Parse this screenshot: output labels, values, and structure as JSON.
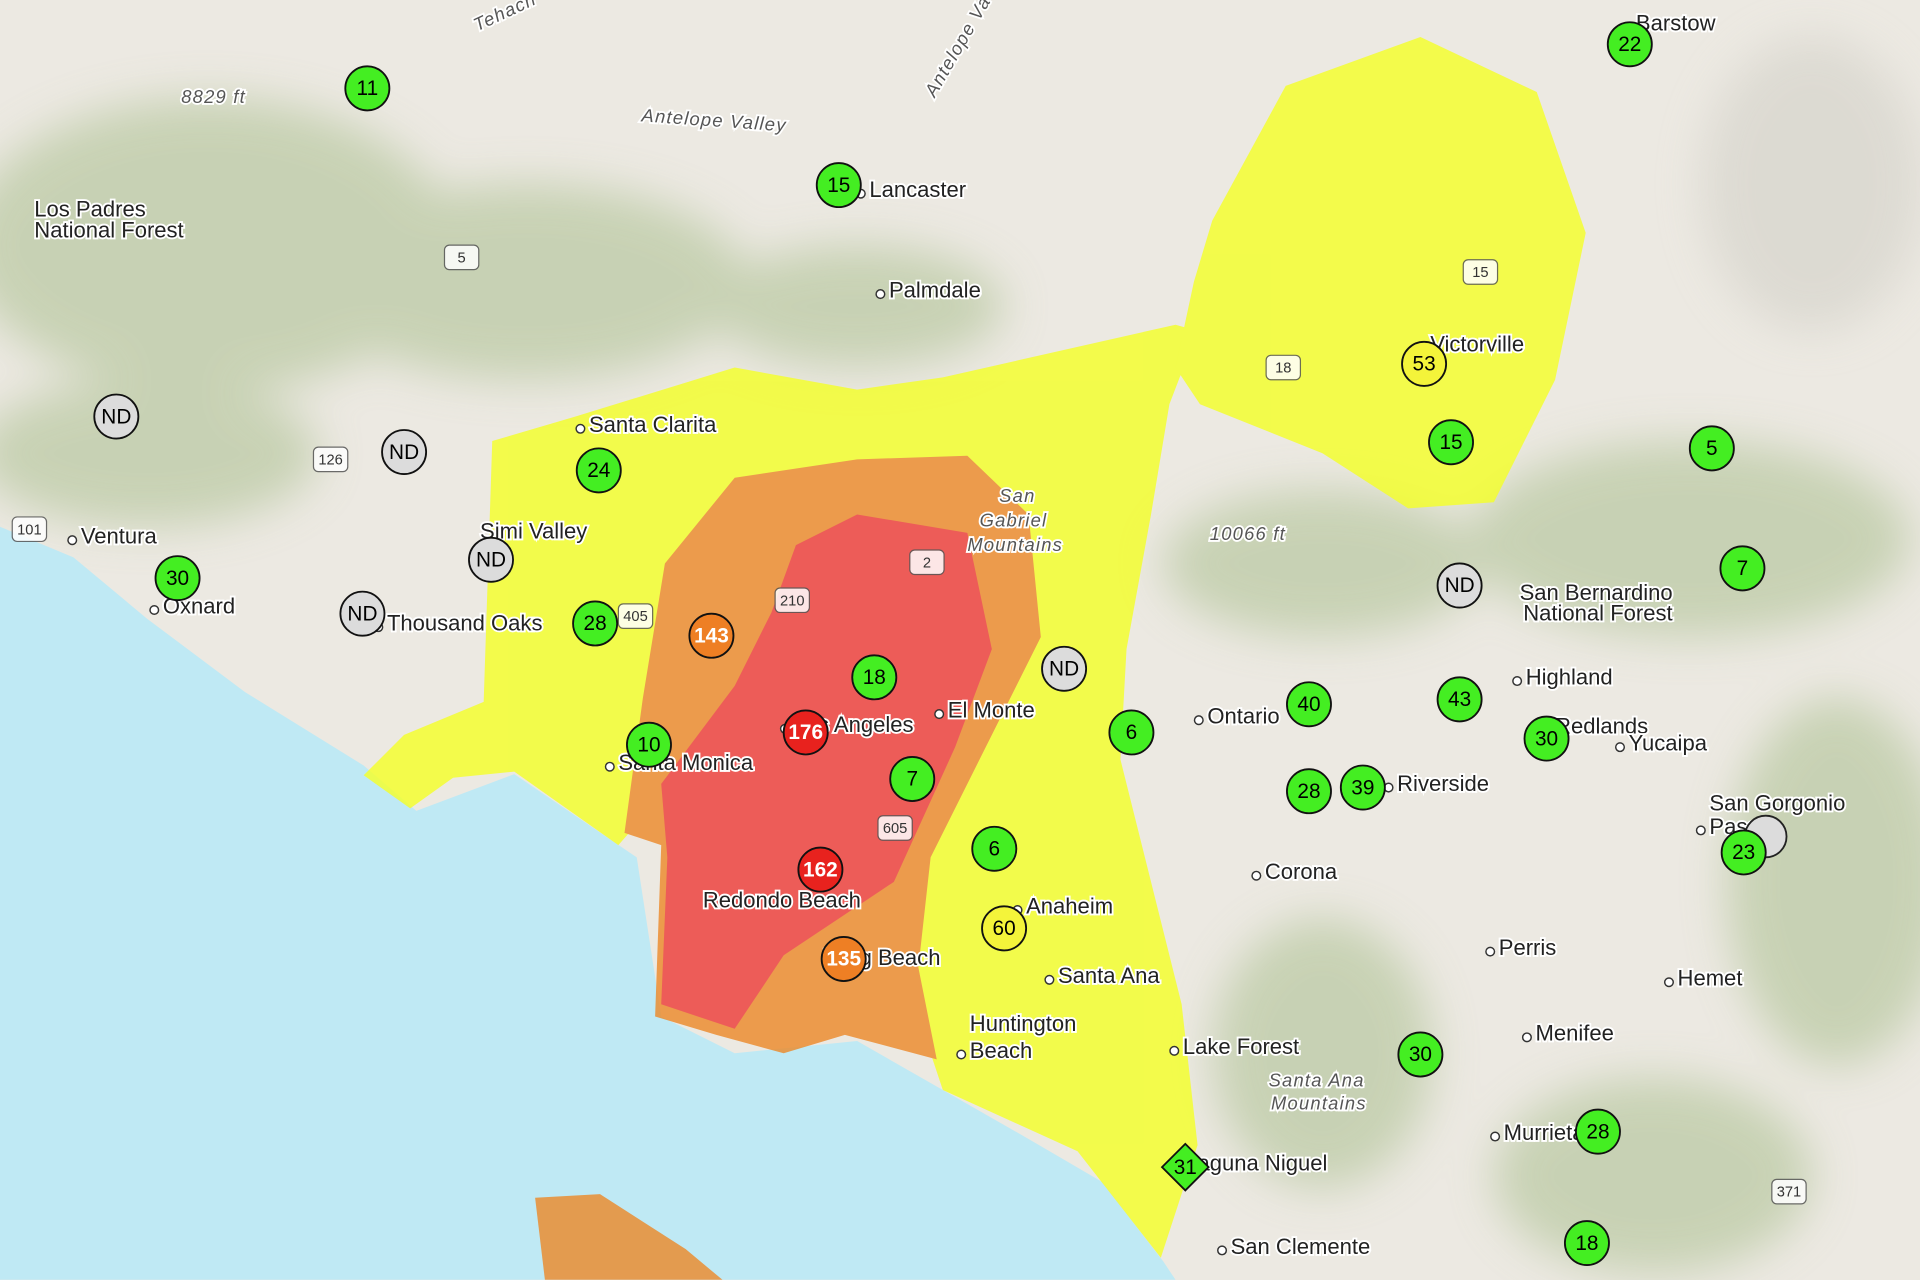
{
  "places": [
    {
      "name": "Lancaster"
    },
    {
      "name": "Palmdale"
    },
    {
      "name": "Santa Clarita"
    },
    {
      "name": "Simi Valley"
    },
    {
      "name": "Thousand Oaks"
    },
    {
      "name": "Ventura"
    },
    {
      "name": "Oxnard"
    },
    {
      "name": "Los Angeles"
    },
    {
      "name": "Santa Monica"
    },
    {
      "name": "El Monte"
    },
    {
      "name": "Redondo Beach"
    },
    {
      "name": "Long Beach"
    },
    {
      "name": "Anaheim"
    },
    {
      "name": "Santa Ana"
    },
    {
      "name": "Huntington"
    },
    {
      "name": "Beach"
    },
    {
      "name": "Lake Forest"
    },
    {
      "name": "Laguna Niguel"
    },
    {
      "name": "San Clemente"
    },
    {
      "name": "Ontario"
    },
    {
      "name": "Riverside"
    },
    {
      "name": "Corona"
    },
    {
      "name": "Perris"
    },
    {
      "name": "Hemet"
    },
    {
      "name": "Menifee"
    },
    {
      "name": "Murrieta"
    },
    {
      "name": "Highland"
    },
    {
      "name": "Redlands"
    },
    {
      "name": "Yucaipa"
    },
    {
      "name": "San Gorgonio"
    },
    {
      "name": "Pass"
    },
    {
      "name": "Victorville"
    },
    {
      "name": "Barstow"
    },
    {
      "name": "Los Padres"
    },
    {
      "name": "National Forest"
    },
    {
      "name": "San Bernardino"
    },
    {
      "name": "National Forest"
    },
    {
      "name": "Antelope Valley"
    },
    {
      "name": "San"
    },
    {
      "name": "Gabriel"
    },
    {
      "name": "Mountains"
    },
    {
      "name": "Santa Ana"
    },
    {
      "name": "Mountains"
    },
    {
      "name": "8829 ft"
    },
    {
      "name": "10066 ft"
    },
    {
      "name": "Antelope Va"
    },
    {
      "name": "Tehach"
    }
  ],
  "shields": [
    "5",
    "126",
    "101",
    "15",
    "18",
    "405",
    "210",
    "2",
    "605",
    "371"
  ],
  "stations": [
    {
      "reading": 11,
      "color": "#44ee22"
    },
    {
      "reading": 15,
      "color": "#44ee22"
    },
    {
      "reading": 22,
      "color": "#44ee22"
    },
    {
      "reading": 53,
      "color": "#f4f43a"
    },
    {
      "reading": 15,
      "color": "#44ee22"
    },
    {
      "reading": 5,
      "color": "#44ee22"
    },
    {
      "reading": "ND",
      "color": "#dcdcdc"
    },
    {
      "reading": "ND",
      "color": "#dcdcdc"
    },
    {
      "reading": 24,
      "color": "#44ee22"
    },
    {
      "reading": "ND",
      "color": "#dcdcdc"
    },
    {
      "reading": 30,
      "color": "#44ee22"
    },
    {
      "reading": "ND",
      "color": "#dcdcdc"
    },
    {
      "reading": 28,
      "color": "#44ee22"
    },
    {
      "reading": 143,
      "color": "#ee7f24"
    },
    {
      "reading": 18,
      "color": "#44ee22"
    },
    {
      "reading": "ND",
      "color": "#dcdcdc"
    },
    {
      "reading": 6,
      "color": "#44ee22"
    },
    {
      "reading": 40,
      "color": "#44ee22"
    },
    {
      "reading": 43,
      "color": "#44ee22"
    },
    {
      "reading": 30,
      "color": "#44ee22"
    },
    {
      "reading": 7,
      "color": "#44ee22"
    },
    {
      "reading": "ND",
      "color": "#dcdcdc"
    },
    {
      "reading": 176,
      "color": "#e8221e"
    },
    {
      "reading": 10,
      "color": "#44ee22"
    },
    {
      "reading": 7,
      "color": "#44ee22"
    },
    {
      "reading": 28,
      "color": "#44ee22"
    },
    {
      "reading": 39,
      "color": "#44ee22"
    },
    {
      "reading": 23,
      "color": "#44ee22"
    },
    {
      "reading": 6,
      "color": "#44ee22"
    },
    {
      "reading": 162,
      "color": "#e8221e"
    },
    {
      "reading": 60,
      "color": "#f4f43a"
    },
    {
      "reading": 135,
      "color": "#ee7f24"
    },
    {
      "reading": 30,
      "color": "#44ee22"
    },
    {
      "reading": 28,
      "color": "#44ee22"
    },
    {
      "reading": 31,
      "color": "#44ee22",
      "shape": "diamond"
    },
    {
      "reading": 18,
      "color": "#44ee22"
    }
  ]
}
